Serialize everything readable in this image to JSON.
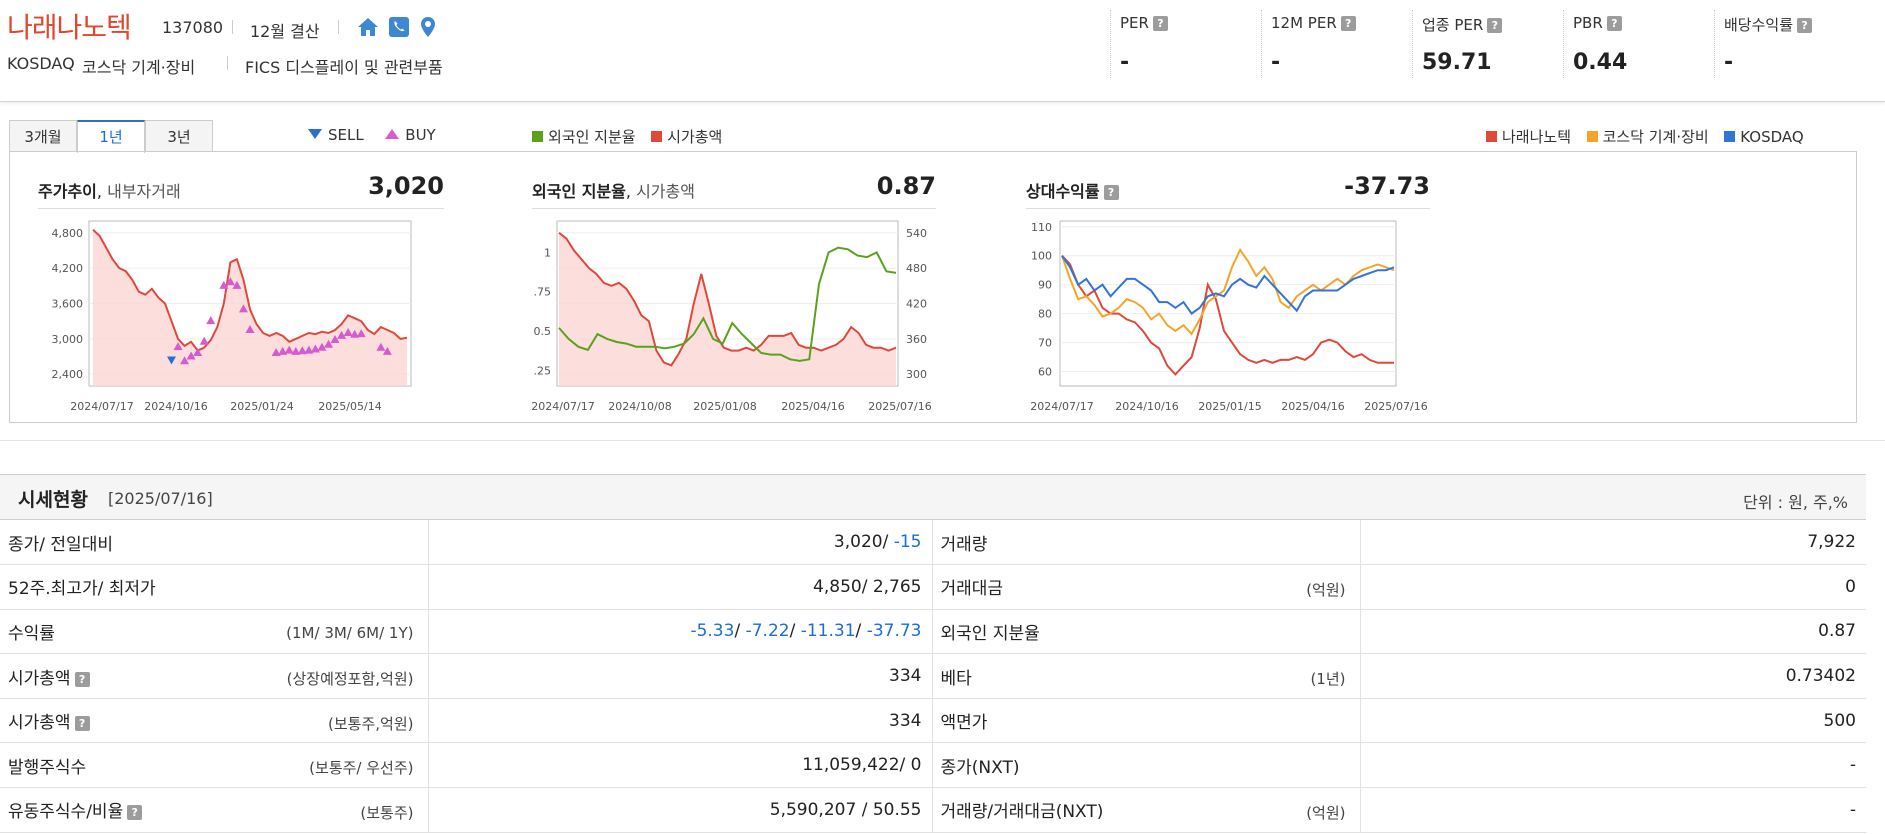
{
  "header": {
    "company_name": "나래나노텍",
    "code": "137080",
    "settlement": "12월 결산",
    "market": "KOSDAQ",
    "market_sector": "코스닥 기계·장비",
    "fics": "FICS 디스플레이 및 관련부품",
    "icons": [
      "home-icon",
      "phone-icon",
      "location-pin-icon"
    ],
    "metrics": [
      {
        "label": "PER",
        "value": "-"
      },
      {
        "label": "12M PER",
        "value": "-"
      },
      {
        "label": "업종 PER",
        "value": "59.71"
      },
      {
        "label": "PBR",
        "value": "0.44"
      },
      {
        "label": "배당수익률",
        "value": "-"
      }
    ]
  },
  "chart_section": {
    "tabs": [
      "3개월",
      "1년",
      "3년"
    ],
    "active_tab": "1년",
    "legend_trade": {
      "sell": "SELL",
      "buy": "BUY"
    },
    "legend_foreign": {
      "a": "외국인 지분율",
      "b": "시가총액"
    },
    "legend_relative": {
      "a": "나래나노텍",
      "b": "코스닥 기계·장비",
      "c": "KOSDAQ"
    },
    "colors": {
      "red": "#e0483a",
      "green": "#5aa11c",
      "orange": "#f2a52a",
      "blue": "#3375d6",
      "sell": "#2b6fd1",
      "buy": "#d65bd0"
    }
  },
  "chart_data": [
    {
      "type": "line",
      "title": "주가추이",
      "subtitle": "내부자거래",
      "current_value": "3,020",
      "x_ticks": [
        "2024/07/17",
        "2024/10/16",
        "2025/01/24",
        "2025/05/14"
      ],
      "y_ticks": [
        2400,
        3000,
        3600,
        4200,
        4800
      ],
      "ylim": [
        2200,
        5000
      ],
      "series": [
        {
          "values": [
            4850,
            4750,
            4550,
            4350,
            4200,
            4150,
            4000,
            3800,
            3750,
            3850,
            3700,
            3600,
            3300,
            3000,
            2880,
            2950,
            2800,
            2850,
            2980,
            3200,
            3600,
            4300,
            4350,
            4000,
            3500,
            3250,
            3100,
            3050,
            3100,
            3050,
            2950,
            3000,
            3050,
            3100,
            3080,
            3120,
            3100,
            3150,
            3250,
            3400,
            3350,
            3300,
            3150,
            3080,
            3200,
            3150,
            3100,
            3000,
            3020
          ]
        }
      ],
      "sell_markers": [
        {
          "i": 12,
          "v": 2650
        }
      ],
      "buy_markers": [
        {
          "i": 13,
          "v": 2860
        },
        {
          "i": 14,
          "v": 2620
        },
        {
          "i": 15,
          "v": 2700
        },
        {
          "i": 16,
          "v": 2760
        },
        {
          "i": 17,
          "v": 2950
        },
        {
          "i": 18,
          "v": 3300
        },
        {
          "i": 20,
          "v": 3900
        },
        {
          "i": 21,
          "v": 3960
        },
        {
          "i": 22,
          "v": 3900
        },
        {
          "i": 23,
          "v": 3500
        },
        {
          "i": 24,
          "v": 3150
        },
        {
          "i": 28,
          "v": 2760
        },
        {
          "i": 29,
          "v": 2780
        },
        {
          "i": 30,
          "v": 2800
        },
        {
          "i": 31,
          "v": 2780
        },
        {
          "i": 32,
          "v": 2790
        },
        {
          "i": 33,
          "v": 2800
        },
        {
          "i": 34,
          "v": 2820
        },
        {
          "i": 35,
          "v": 2850
        },
        {
          "i": 36,
          "v": 2900
        },
        {
          "i": 37,
          "v": 2980
        },
        {
          "i": 38,
          "v": 3050
        },
        {
          "i": 39,
          "v": 3100
        },
        {
          "i": 40,
          "v": 3070
        },
        {
          "i": 41,
          "v": 3080
        },
        {
          "i": 44,
          "v": 2850
        },
        {
          "i": 45,
          "v": 2780
        }
      ]
    },
    {
      "type": "line",
      "title": "외국인 지분율",
      "subtitle": "시가총액",
      "current_value": "0.87",
      "x_ticks": [
        "2024/07/17",
        "2024/10/08",
        "2025/01/08",
        "2025/04/16",
        "2025/07/16"
      ],
      "y_left_ticks": [
        0.25,
        0.5,
        0.75,
        1
      ],
      "y_left_labels": [
        ".25",
        "0.5",
        ".75",
        "1"
      ],
      "y_right_ticks": [
        300,
        360,
        420,
        480,
        540
      ],
      "ylim_left": [
        0.15,
        1.2
      ],
      "ylim_right": [
        280,
        560
      ],
      "series": [
        {
          "name": "외국인 지분율",
          "axis": "left",
          "values": [
            0.52,
            0.45,
            0.4,
            0.38,
            0.48,
            0.45,
            0.43,
            0.42,
            0.4,
            0.4,
            0.4,
            0.39,
            0.4,
            0.42,
            0.48,
            0.58,
            0.45,
            0.42,
            0.55,
            0.48,
            0.42,
            0.36,
            0.35,
            0.35,
            0.32,
            0.31,
            0.32,
            0.8,
            1.0,
            1.03,
            1.02,
            0.98,
            0.97,
            1.0,
            0.88,
            0.87
          ]
        },
        {
          "name": "시가총액",
          "axis": "right",
          "values": [
            540,
            530,
            510,
            495,
            480,
            470,
            455,
            450,
            455,
            445,
            425,
            400,
            390,
            340,
            320,
            315,
            335,
            360,
            420,
            470,
            420,
            365,
            345,
            340,
            340,
            345,
            340,
            350,
            365,
            365,
            365,
            370,
            350,
            345,
            345,
            340,
            345,
            350,
            360,
            380,
            370,
            350,
            345,
            345,
            340,
            345
          ]
        }
      ]
    },
    {
      "type": "line",
      "title": "상대수익률",
      "current_value": "-37.73",
      "x_ticks": [
        "2024/07/17",
        "2024/10/16",
        "2025/01/15",
        "2025/04/16",
        "2025/07/16"
      ],
      "y_ticks": [
        60,
        70,
        80,
        90,
        100,
        110
      ],
      "ylim": [
        55,
        112
      ],
      "series": [
        {
          "name": "나래나노텍",
          "values": [
            100,
            97,
            90,
            86,
            88,
            82,
            80,
            80,
            78,
            77,
            74,
            70,
            68,
            62,
            59,
            62,
            65,
            75,
            90,
            85,
            74,
            70,
            66,
            64,
            63,
            64,
            63,
            64,
            64,
            65,
            64,
            66,
            70,
            71,
            70,
            67,
            65,
            66,
            64,
            63,
            63,
            63
          ]
        },
        {
          "name": "코스닥 기계·장비",
          "values": [
            100,
            92,
            85,
            86,
            83,
            79,
            80,
            82,
            85,
            84,
            82,
            78,
            80,
            76,
            74,
            76,
            73,
            78,
            84,
            86,
            88,
            96,
            102,
            98,
            93,
            96,
            92,
            84,
            82,
            86,
            88,
            90,
            88,
            90,
            92,
            90,
            93,
            95,
            96,
            97,
            96,
            95
          ]
        },
        {
          "name": "KOSDAQ",
          "values": [
            100,
            96,
            90,
            92,
            88,
            90,
            86,
            89,
            92,
            92,
            90,
            88,
            84,
            84,
            82,
            84,
            80,
            82,
            86,
            87,
            86,
            90,
            92,
            90,
            89,
            93,
            90,
            87,
            84,
            81,
            86,
            88,
            88,
            88,
            88,
            90,
            92,
            93,
            94,
            95,
            95,
            96
          ]
        }
      ]
    }
  ],
  "price_table": {
    "title": "시세현황",
    "date": "[2025/07/16]",
    "unit": "단위 : 원, 주,%",
    "rows": [
      {
        "l1": "종가/ 전일대비",
        "n1": "",
        "v1a": "3,020/",
        "v1b": " -15",
        "l2": "거래량",
        "n2": "",
        "v2": "7,922"
      },
      {
        "l1": "52주.최고가/ 최저가",
        "n1": "",
        "v1a": "4,850/ 2,765",
        "v1b": "",
        "l2": "거래대금",
        "n2": "(억원)",
        "v2": "0"
      },
      {
        "l1": "수익률",
        "n1": "(1M/ 3M/ 6M/ 1Y)",
        "v1a": "",
        "v1b": "",
        "l2": "외국인 지분율",
        "n2": "",
        "v2": "0.87"
      },
      {
        "l1": "시가총액",
        "n1": "(상장예정포함,억원)",
        "v1a": "334",
        "v1b": "",
        "l2": "베타",
        "n2": "(1년)",
        "v2": "0.73402"
      },
      {
        "l1": "시가총액",
        "n1": "(보통주,억원)",
        "v1a": "334",
        "v1b": "",
        "l2": "액면가",
        "n2": "",
        "v2": "500"
      },
      {
        "l1": "발행주식수",
        "n1": "(보통주/ 우선주)",
        "v1a": "11,059,422/ 0",
        "v1b": "",
        "l2": "종가(NXT)",
        "n2": "",
        "v2": "-"
      },
      {
        "l1": "유동주식수/비율",
        "n1": "(보통주)",
        "v1a": "5,590,207 / 50.55",
        "v1b": "",
        "l2": "거래량/거래대금(NXT)",
        "n2": "(억원)",
        "v2": "-"
      }
    ],
    "returns": [
      "-5.33",
      "-7.22",
      "-11.31",
      "-37.73"
    ],
    "help_icon": "?"
  }
}
